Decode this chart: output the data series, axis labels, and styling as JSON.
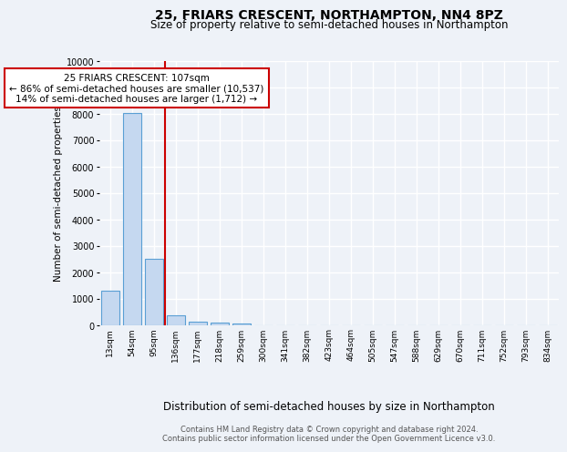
{
  "title": "25, FRIARS CRESCENT, NORTHAMPTON, NN4 8PZ",
  "subtitle": "Size of property relative to semi-detached houses in Northampton",
  "xlabel": "Distribution of semi-detached houses by size in Northampton",
  "ylabel": "Number of semi-detached properties",
  "bar_categories": [
    "13sqm",
    "54sqm",
    "95sqm",
    "136sqm",
    "177sqm",
    "218sqm",
    "259sqm",
    "300sqm",
    "341sqm",
    "382sqm",
    "423sqm",
    "464sqm",
    "505sqm",
    "547sqm",
    "588sqm",
    "629sqm",
    "670sqm",
    "711sqm",
    "752sqm",
    "793sqm",
    "834sqm"
  ],
  "bar_values": [
    1300,
    8020,
    2520,
    380,
    140,
    100,
    80,
    0,
    0,
    0,
    0,
    0,
    0,
    0,
    0,
    0,
    0,
    0,
    0,
    0,
    0
  ],
  "bar_color": "#c5d8f0",
  "bar_edge_color": "#5a9fd4",
  "vline_color": "#cc0000",
  "annotation_text": "25 FRIARS CRESCENT: 107sqm\n← 86% of semi-detached houses are smaller (10,537)\n14% of semi-detached houses are larger (1,712) →",
  "annotation_box_color": "#ffffff",
  "annotation_box_edge_color": "#cc0000",
  "ylim": [
    0,
    10000
  ],
  "yticks": [
    0,
    1000,
    2000,
    3000,
    4000,
    5000,
    6000,
    7000,
    8000,
    9000,
    10000
  ],
  "footer1": "Contains HM Land Registry data © Crown copyright and database right 2024.",
  "footer2": "Contains public sector information licensed under the Open Government Licence v3.0.",
  "bg_color": "#eef2f8",
  "grid_color": "#ffffff",
  "title_fontsize": 10,
  "subtitle_fontsize": 8.5,
  "ylabel_fontsize": 7.5,
  "xlabel_fontsize": 8.5,
  "footer_fontsize": 6.0,
  "tick_fontsize": 7,
  "xtick_fontsize": 6.5,
  "annot_fontsize": 7.5
}
